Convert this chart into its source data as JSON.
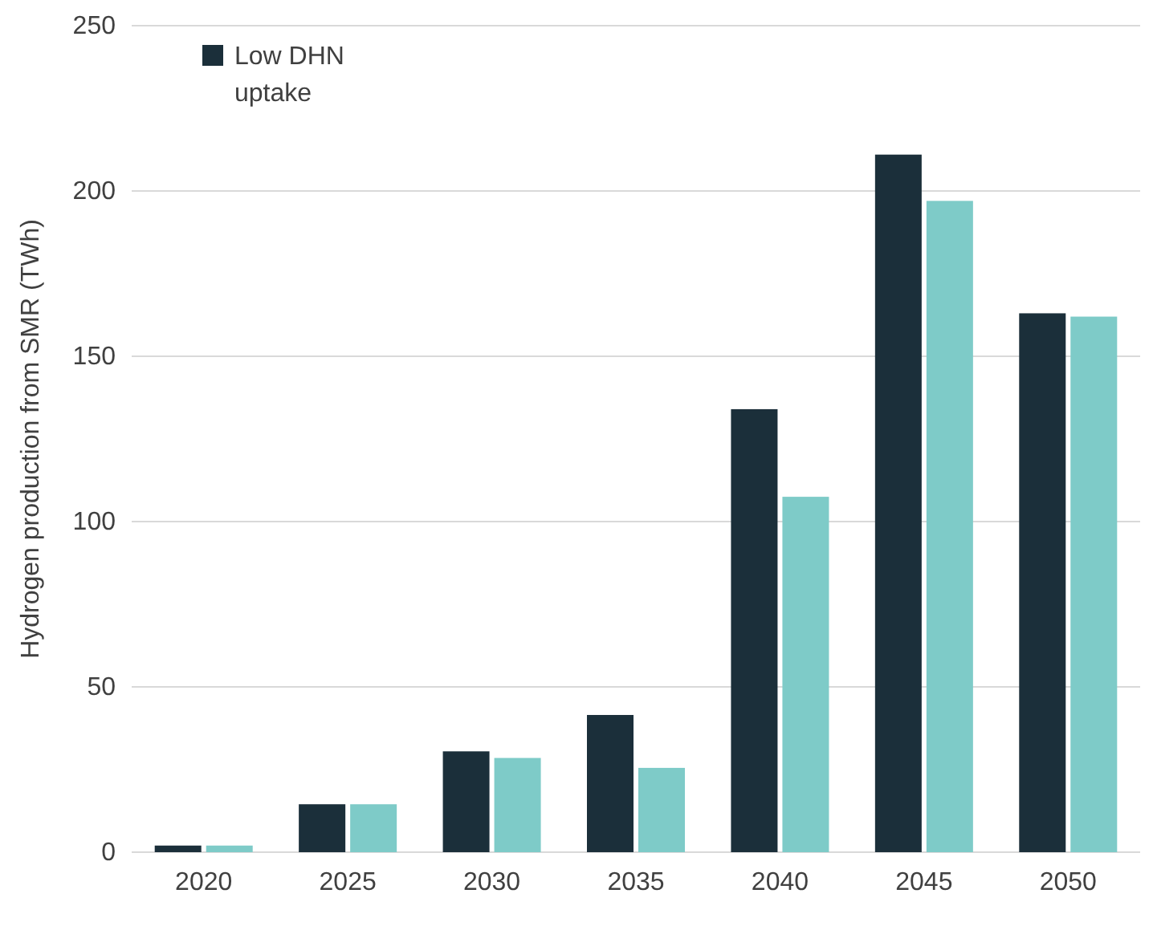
{
  "chart_data": {
    "type": "bar",
    "ylabel": "Hydrogen production from SMR (TWh)",
    "categories": [
      "2020",
      "2025",
      "2030",
      "2035",
      "2040",
      "2045",
      "2050"
    ],
    "series": [
      {
        "name": "Low DHN uptake",
        "color": "#1b2f3a",
        "values": [
          2,
          14.5,
          30.5,
          41.5,
          134,
          211,
          163
        ]
      },
      {
        "color": "#7ecbc8",
        "values": [
          2,
          14.5,
          28.5,
          25.5,
          107.5,
          197,
          162
        ]
      }
    ],
    "ylim": [
      0,
      250
    ],
    "yticks": [
      0,
      50,
      100,
      150,
      200,
      250
    ],
    "grid": "y",
    "legend": "top left"
  }
}
